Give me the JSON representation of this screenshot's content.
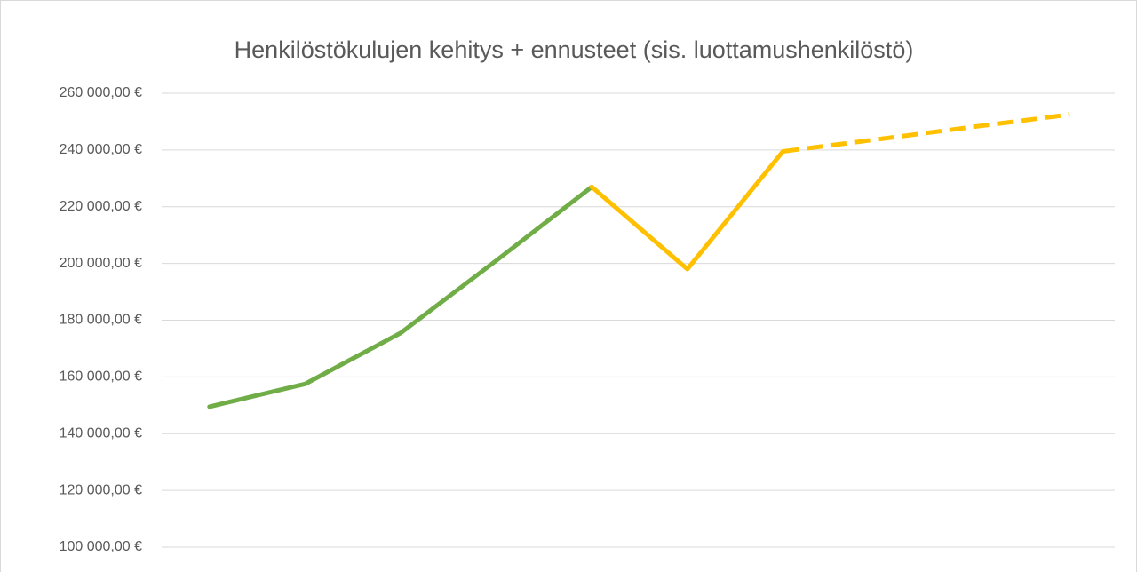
{
  "chart_data": {
    "type": "line",
    "title": "Henkilöstökulujen kehitys + ennusteet (sis. luottamushenkilöstö)",
    "categories": [
      null,
      null,
      null,
      null,
      null,
      null,
      null,
      null,
      null,
      null
    ],
    "series": [
      {
        "color": "#70ad47",
        "style": "solid",
        "values": [
          149500,
          157500,
          175500,
          201000,
          227000,
          null,
          null,
          null,
          null,
          null
        ]
      },
      {
        "color": "#ffc000",
        "style": "solid",
        "values": [
          null,
          null,
          null,
          null,
          227000,
          198000,
          239500,
          null,
          null,
          null
        ]
      },
      {
        "color": "#ffc000",
        "style": "dashed",
        "values": [
          null,
          null,
          null,
          null,
          null,
          null,
          239500,
          243800,
          248200,
          252500
        ]
      }
    ],
    "ylim": [
      100000,
      260000
    ],
    "yticks": [
      {
        "value": 100000,
        "label": "100 000,00 €"
      },
      {
        "value": 120000,
        "label": "120 000,00 €"
      },
      {
        "value": 140000,
        "label": "140 000,00 €"
      },
      {
        "value": 160000,
        "label": "160 000,00 €"
      },
      {
        "value": 180000,
        "label": "180 000,00 €"
      },
      {
        "value": 200000,
        "label": "200 000,00 €"
      },
      {
        "value": 220000,
        "label": "220 000,00 €"
      },
      {
        "value": 240000,
        "label": "240 000,00 €"
      },
      {
        "value": 260000,
        "label": "260 000,00 €"
      }
    ],
    "grid": true
  }
}
